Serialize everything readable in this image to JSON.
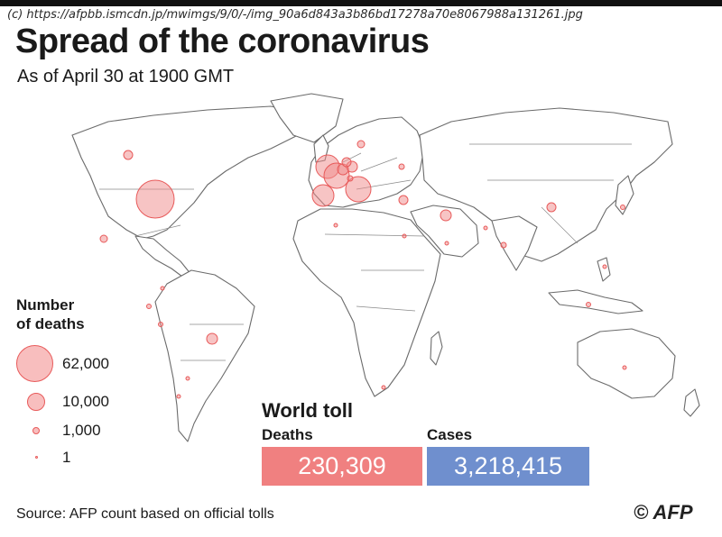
{
  "watermark": "(c) https://afpbb.ismcdn.jp/mwimgs/9/0/-/img_90a6d843a3b86bd17278a70e8067988a131261.jpg",
  "title": "Spread of the coronavirus",
  "subtitle": "As of April 30 at 1900 GMT",
  "colors": {
    "bubble_fill": "#f08a8a",
    "bubble_stroke": "#e85a5a",
    "deaths_box": "#f08080",
    "cases_box": "#6f8fce",
    "land": "#ffffff",
    "border": "#6b6b6b"
  },
  "legend": {
    "title_line1": "Number",
    "title_line2": "of deaths",
    "items": [
      {
        "label": "62,000"
      },
      {
        "label": "10,000"
      },
      {
        "label": "1,000"
      },
      {
        "label": "1"
      }
    ]
  },
  "toll": {
    "title": "World toll",
    "deaths_label": "Deaths",
    "deaths_value": "230,309",
    "cases_label": "Cases",
    "cases_value": "3,218,415"
  },
  "source": "Source: AFP count based on official tolls",
  "credit": "© AFP"
}
